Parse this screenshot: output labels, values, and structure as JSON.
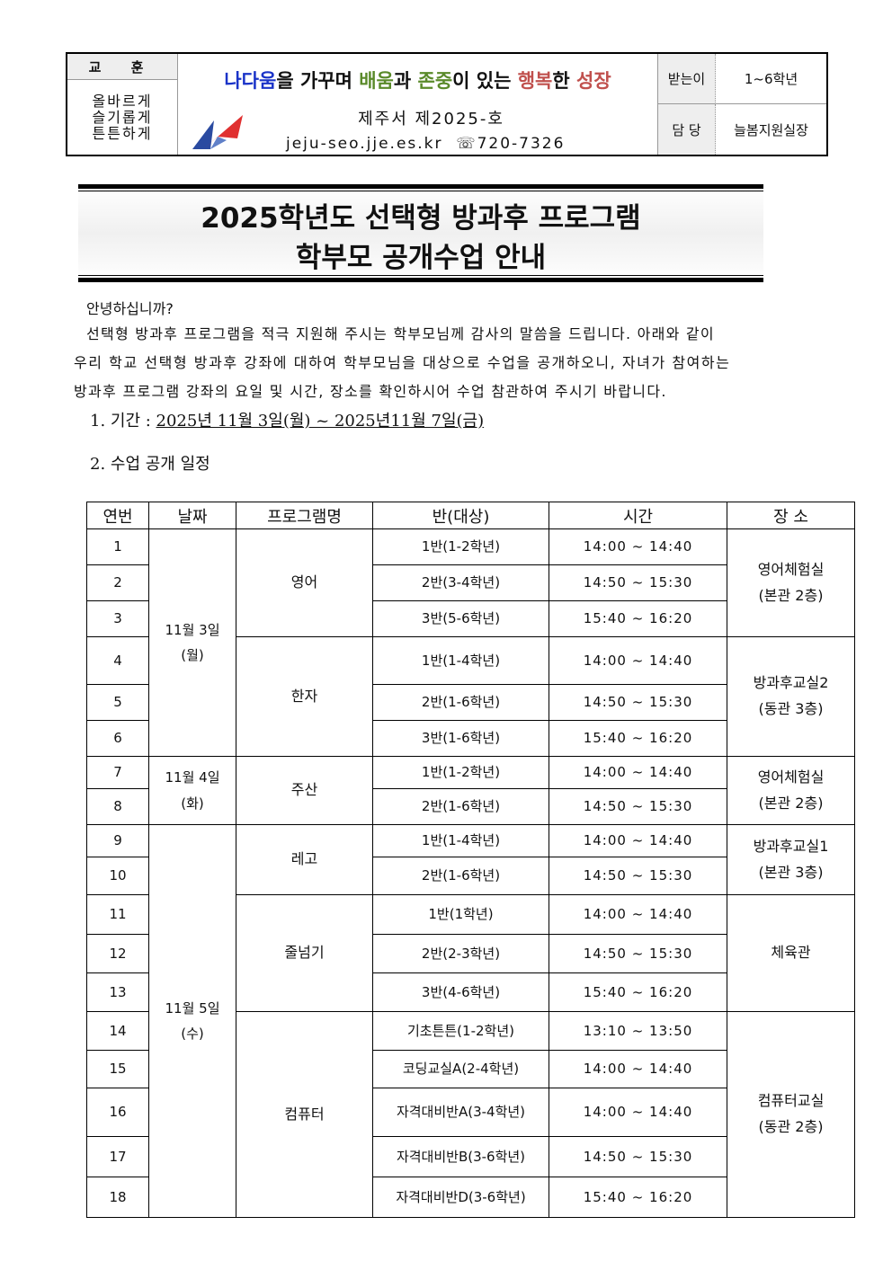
{
  "header": {
    "motto_title": "교 훈",
    "motto_lines": [
      "올바르게",
      "슬기롭게",
      "튼튼하게"
    ],
    "slogan": [
      {
        "text": "나다움",
        "color": "blue"
      },
      {
        "text": "을 가꾸며 ",
        "color": "black"
      },
      {
        "text": "배움",
        "color": "green"
      },
      {
        "text": "과 ",
        "color": "black"
      },
      {
        "text": "존중",
        "color": "green"
      },
      {
        "text": "이 있는 ",
        "color": "black"
      },
      {
        "text": "행복",
        "color": "red"
      },
      {
        "text": "한 ",
        "color": "black"
      },
      {
        "text": "성장",
        "color": "red"
      }
    ],
    "doc_number": "제주서 제2025-호",
    "website": "jeju-seo.jje.es.kr",
    "phone": "☏720-7326",
    "recipient_label": "받는이",
    "recipient_value": "1~6학년",
    "manager_label": "담 당",
    "manager_value": "늘봄지원실장"
  },
  "title": {
    "line1": "2025학년도 선택형 방과후 프로그램",
    "line2": "학부모 공개수업 안내"
  },
  "body": {
    "greeting": "안녕하십니까?",
    "para_lines": [
      "선택형 방과후 프로그램을 적극 지원해 주시는 학부모님께 감사의 말씀을 드립니다. 아래와 같이",
      "우리 학교 선택형 방과후 강좌에 대하여 학부모님을 대상으로 수업을 공개하오니, 자녀가 참여하는",
      "방과후 프로그램 강좌의 요일 및 시간, 장소를 확인하시어 수업 참관하여 주시기 바랍니다."
    ],
    "period_label": "1. 기간 : ",
    "period_value": "2025년 11월 3일(월) ~ 2025년11월 7일(금)",
    "schedule_label": "2. 수업 공개 일정"
  },
  "schedule": {
    "headers": [
      "연번",
      "날짜",
      "프로그램명",
      "반(대상)",
      "시간",
      "장 소"
    ],
    "dates": [
      {
        "date": "11월 3일",
        "day": "(월)",
        "programs": [
          {
            "name": "영어",
            "place": [
              "영어체험실",
              "(본관 2층)"
            ],
            "classes": [
              {
                "no": "1",
                "cls": "1반(1-2학년)",
                "time": "14:00 ~ 14:40"
              },
              {
                "no": "2",
                "cls": "2반(3-4학년)",
                "time": "14:50 ~ 15:30"
              },
              {
                "no": "3",
                "cls": "3반(5-6학년)",
                "time": "15:40 ~ 16:20"
              }
            ]
          },
          {
            "name": "한자",
            "place": [
              "방과후교실2",
              "(동관 3층)"
            ],
            "classes": [
              {
                "no": "4",
                "cls": "1반(1-4학년)",
                "time": "14:00 ~ 14:40"
              },
              {
                "no": "5",
                "cls": "2반(1-6학년)",
                "time": "14:50 ~ 15:30"
              },
              {
                "no": "6",
                "cls": "3반(1-6학년)",
                "time": "15:40 ~ 16:20"
              }
            ]
          }
        ]
      },
      {
        "date": "11월 4일",
        "day": "(화)",
        "programs": [
          {
            "name": "주산",
            "place": [
              "영어체험실",
              "(본관 2층)"
            ],
            "classes": [
              {
                "no": "7",
                "cls": "1반(1-2학년)",
                "time": "14:00 ~ 14:40"
              },
              {
                "no": "8",
                "cls": "2반(1-6학년)",
                "time": "14:50 ~ 15:30"
              }
            ]
          }
        ]
      },
      {
        "date": "11월 5일",
        "day": "(수)",
        "programs": [
          {
            "name": "레고",
            "place": [
              "방과후교실1",
              "(본관 3층)"
            ],
            "classes": [
              {
                "no": "9",
                "cls": "1반(1-4학년)",
                "time": "14:00 ~ 14:40"
              },
              {
                "no": "10",
                "cls": "2반(1-6학년)",
                "time": "14:50 ~ 15:30"
              }
            ]
          },
          {
            "name": "줄넘기",
            "place": [
              "체육관"
            ],
            "classes": [
              {
                "no": "11",
                "cls": "1반(1학년)",
                "time": "14:00 ~ 14:40"
              },
              {
                "no": "12",
                "cls": "2반(2-3학년)",
                "time": "14:50 ~ 15:30"
              },
              {
                "no": "13",
                "cls": "3반(4-6학년)",
                "time": "15:40 ~ 16:20"
              }
            ]
          },
          {
            "name": "컴퓨터",
            "place": [
              "컴퓨터교실",
              "(동관 2층)"
            ],
            "classes": [
              {
                "no": "14",
                "cls": "기초튼튼(1-2학년)",
                "time": "13:10 ~ 13:50"
              },
              {
                "no": "15",
                "cls": "코딩교실A(2-4학년)",
                "time": "14:00 ~ 14:40"
              },
              {
                "no": "16",
                "cls": "자격대비반A(3-4학년)",
                "time": "14:00 ~ 14:40"
              },
              {
                "no": "17",
                "cls": "자격대비반B(3-6학년)",
                "time": "14:50 ~ 15:30"
              },
              {
                "no": "18",
                "cls": "자격대비반D(3-6학년)",
                "time": "15:40 ~ 16:20"
              }
            ]
          }
        ]
      }
    ]
  }
}
